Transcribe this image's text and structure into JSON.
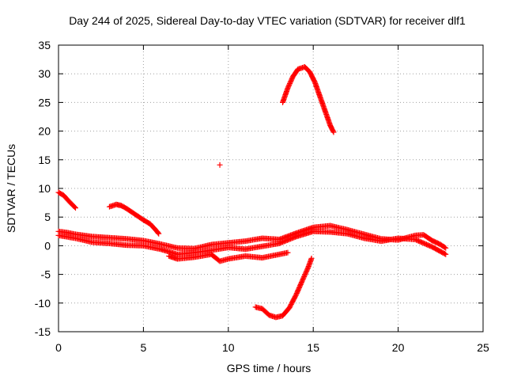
{
  "chart_data": {
    "type": "scatter",
    "title": "Day 244 of 2025, Sidereal Day-to-day VTEC variation (SDTVAR) for receiver dlf1",
    "xlabel": "GPS time / hours",
    "ylabel": "SDTVAR / TECUs",
    "xlim": [
      0,
      25
    ],
    "ylim": [
      -15,
      35
    ],
    "xticks": [
      0,
      5,
      10,
      15,
      20,
      25
    ],
    "yticks": [
      -15,
      -10,
      -5,
      0,
      5,
      10,
      15,
      20,
      25,
      30,
      35
    ],
    "grid": true,
    "marker": "plus",
    "color": "#ff0000",
    "series": [
      {
        "name": "arc-high-peak",
        "points": [
          [
            13.2,
            25
          ],
          [
            13.5,
            27.5
          ],
          [
            13.8,
            29.5
          ],
          [
            14.1,
            30.8
          ],
          [
            14.5,
            31.2
          ],
          [
            14.8,
            30.3
          ],
          [
            15.1,
            28.5
          ],
          [
            15.4,
            26
          ],
          [
            15.7,
            23.5
          ],
          [
            16.0,
            21
          ],
          [
            16.2,
            19.8
          ]
        ]
      },
      {
        "name": "arc-deep-dip",
        "points": [
          [
            11.6,
            -10.7
          ],
          [
            12.0,
            -11.0
          ],
          [
            12.4,
            -12.1
          ],
          [
            12.8,
            -12.5
          ],
          [
            13.2,
            -12.2
          ],
          [
            13.6,
            -10.8
          ],
          [
            14.0,
            -8.5
          ],
          [
            14.4,
            -5.8
          ],
          [
            14.7,
            -3.8
          ],
          [
            14.9,
            -2.2
          ]
        ]
      },
      {
        "name": "outlier",
        "points": [
          [
            9.5,
            14.1
          ]
        ]
      },
      {
        "name": "arc-early-decline",
        "points": [
          [
            0.0,
            9.3
          ],
          [
            0.3,
            8.8
          ],
          [
            0.6,
            7.8
          ],
          [
            0.9,
            6.9
          ],
          [
            1.0,
            6.6
          ]
        ]
      },
      {
        "name": "arc-morning-hump",
        "points": [
          [
            3.0,
            6.8
          ],
          [
            3.4,
            7.2
          ],
          [
            3.7,
            7.0
          ],
          [
            4.0,
            6.5
          ],
          [
            4.5,
            5.5
          ],
          [
            5.0,
            4.5
          ],
          [
            5.4,
            3.8
          ],
          [
            5.8,
            2.5
          ],
          [
            5.9,
            2.1
          ]
        ]
      },
      {
        "name": "band-upper",
        "points": [
          [
            0.0,
            2.5
          ],
          [
            0.5,
            2.3
          ],
          [
            1.0,
            2.0
          ],
          [
            2.0,
            1.6
          ],
          [
            3.0,
            1.4
          ],
          [
            4.0,
            1.2
          ],
          [
            5.0,
            0.9
          ],
          [
            6.0,
            0.3
          ],
          [
            7.0,
            -0.4
          ],
          [
            8.0,
            -0.5
          ],
          [
            9.0,
            0.2
          ],
          [
            10.0,
            0.5
          ],
          [
            11.0,
            0.8
          ],
          [
            12.0,
            1.3
          ],
          [
            13.0,
            1.1
          ],
          [
            14.0,
            2.2
          ],
          [
            15.0,
            3.2
          ],
          [
            16.0,
            3.5
          ],
          [
            17.0,
            2.8
          ],
          [
            18.0,
            2.0
          ],
          [
            19.0,
            1.2
          ],
          [
            20.0,
            1.0
          ],
          [
            21.0,
            1.8
          ],
          [
            21.5,
            1.9
          ],
          [
            22.0,
            0.9
          ],
          [
            22.5,
            0.2
          ],
          [
            22.8,
            -0.4
          ]
        ]
      },
      {
        "name": "band-middle",
        "points": [
          [
            0.0,
            1.8
          ],
          [
            1.0,
            1.3
          ],
          [
            2.0,
            0.6
          ],
          [
            3.0,
            0.4
          ],
          [
            4.0,
            0.1
          ],
          [
            5.0,
            0.0
          ],
          [
            6.0,
            -0.6
          ],
          [
            7.0,
            -1.5
          ],
          [
            8.0,
            -1.2
          ],
          [
            9.0,
            -0.8
          ],
          [
            10.0,
            -0.3
          ],
          [
            11.0,
            -0.6
          ],
          [
            12.0,
            -0.1
          ],
          [
            13.0,
            0.4
          ],
          [
            14.0,
            1.6
          ],
          [
            15.0,
            2.5
          ],
          [
            16.0,
            2.4
          ],
          [
            17.0,
            2.1
          ],
          [
            18.0,
            1.3
          ],
          [
            19.0,
            0.8
          ],
          [
            20.0,
            1.3
          ],
          [
            21.0,
            1.1
          ],
          [
            22.0,
            -0.2
          ],
          [
            22.8,
            -1.5
          ]
        ]
      },
      {
        "name": "band-lower",
        "points": [
          [
            6.5,
            -1.8
          ],
          [
            7.0,
            -2.3
          ],
          [
            8.0,
            -2.0
          ],
          [
            9.0,
            -1.5
          ],
          [
            9.5,
            -2.7
          ],
          [
            10.0,
            -2.3
          ],
          [
            11.0,
            -1.8
          ],
          [
            12.0,
            -2.1
          ],
          [
            13.0,
            -1.5
          ],
          [
            13.5,
            -1.2
          ]
        ]
      }
    ]
  }
}
